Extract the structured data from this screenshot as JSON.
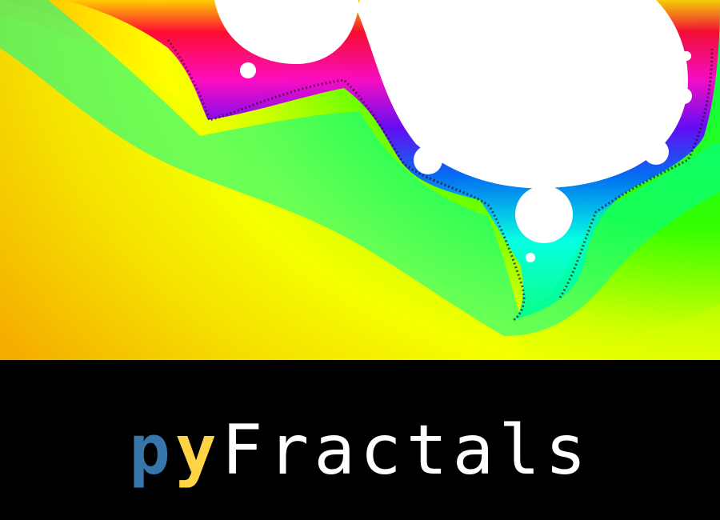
{
  "logo": {
    "part_p": "p",
    "part_y": "y",
    "part_rest": "Fractals"
  },
  "colors": {
    "p": "#3776ab",
    "y": "#ffd343",
    "rest": "#ffffff",
    "background": "#000000"
  },
  "fractal": {
    "kind": "mandelbrot-zoom",
    "palette": [
      "#ff5500",
      "#ffff00",
      "#33ff00",
      "#00ffcc",
      "#0000ff",
      "#ff00ff",
      "#ff0000"
    ]
  }
}
